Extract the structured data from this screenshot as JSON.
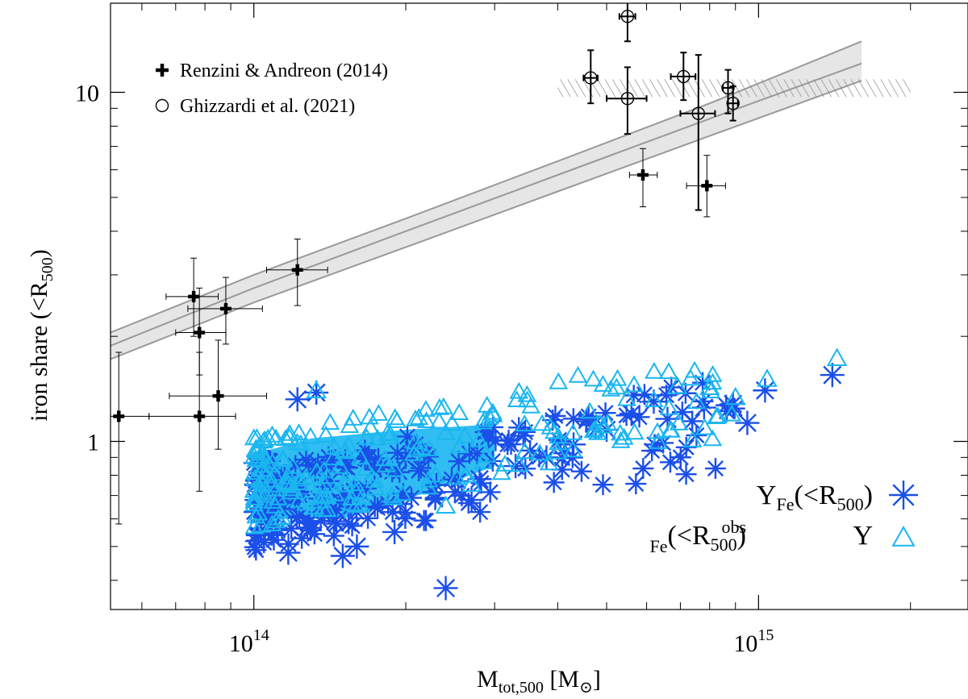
{
  "chart_data": {
    "type": "scatter",
    "xscale": "log",
    "yscale": "log",
    "xlim": [
      52000000000000,
      2600000000000000
    ],
    "ylim": [
      0.33,
      18
    ],
    "xlabel": {
      "main": "M",
      "sub": "tot,500",
      "unit_open": " [M",
      "unit_sub": "⊙",
      "unit_close": "]"
    },
    "ylabel": {
      "main": "iron share (<R",
      "sub": "500",
      "close": ")"
    },
    "x_major_ticks": [
      {
        "value": 100000000000000,
        "base": "10",
        "exp": "14"
      },
      {
        "value": 1000000000000000,
        "base": "10",
        "exp": "15"
      }
    ],
    "y_major_ticks": [
      {
        "value": 1,
        "label": "1"
      },
      {
        "value": 10,
        "label": "10"
      }
    ],
    "band": {
      "x": [
        52000000000000,
        100000000000000,
        200000000000000,
        400000000000000,
        800000000000000,
        1600000000000000
      ],
      "lower": [
        1.72,
        2.5,
        3.6,
        5.2,
        7.5,
        10.8
      ],
      "mid": [
        1.88,
        2.75,
        4.0,
        5.8,
        8.4,
        12.1
      ],
      "upper": [
        2.05,
        3.0,
        4.35,
        6.35,
        9.3,
        14.0
      ]
    },
    "hatch": {
      "x0": 400000000000000,
      "x1": 2000000000000000,
      "y0": 9.7,
      "y1": 10.9
    },
    "renzini": {
      "name": "Renzini & Andreon (2014)",
      "points": [
        {
          "x": 54000000000000,
          "y": 1.18,
          "xlo": 48000000000000,
          "xhi": 62000000000000,
          "ylo": 0.58,
          "yhi": 1.8
        },
        {
          "x": 76000000000000,
          "y": 2.6,
          "xlo": 67000000000000,
          "xhi": 85000000000000,
          "ylo": 2.0,
          "yhi": 3.35
        },
        {
          "x": 78000000000000,
          "y": 2.05,
          "xlo": 70000000000000,
          "xhi": 88000000000000,
          "ylo": 1.55,
          "yhi": 2.75
        },
        {
          "x": 88000000000000,
          "y": 2.4,
          "xlo": 74000000000000,
          "xhi": 104000000000000,
          "ylo": 1.9,
          "yhi": 2.95
        },
        {
          "x": 78000000000000,
          "y": 1.18,
          "xlo": 62000000000000,
          "xhi": 92000000000000,
          "ylo": 0.72,
          "yhi": 1.8
        },
        {
          "x": 85000000000000,
          "y": 1.35,
          "xlo": 68000000000000,
          "xhi": 106000000000000,
          "ylo": 0.95,
          "yhi": 1.95
        },
        {
          "x": 122000000000000,
          "y": 3.1,
          "xlo": 106000000000000,
          "xhi": 140000000000000,
          "ylo": 2.45,
          "yhi": 3.8
        },
        {
          "x": 590000000000000,
          "y": 5.8,
          "xlo": 555000000000000,
          "xhi": 630000000000000,
          "ylo": 4.7,
          "yhi": 6.9
        },
        {
          "x": 790000000000000,
          "y": 5.4,
          "xlo": 720000000000000,
          "xhi": 860000000000000,
          "ylo": 4.4,
          "yhi": 6.6
        }
      ]
    },
    "ghizzardi": {
      "name": "Ghizzardi et al. (2021)",
      "points": [
        {
          "x": 465000000000000,
          "y": 11.0,
          "xlo": 450000000000000,
          "xhi": 480000000000000,
          "ylo": 9.3,
          "yhi": 13.2
        },
        {
          "x": 550000000000000,
          "y": 16.5,
          "xlo": 530000000000000,
          "xhi": 570000000000000,
          "ylo": 14.0,
          "yhi": 19.5
        },
        {
          "x": 550000000000000,
          "y": 9.6,
          "xlo": 500000000000000,
          "xhi": 600000000000000,
          "ylo": 7.6,
          "yhi": 11.8
        },
        {
          "x": 710000000000000,
          "y": 11.1,
          "xlo": 670000000000000,
          "xhi": 750000000000000,
          "ylo": 9.5,
          "yhi": 13.0
        },
        {
          "x": 760000000000000,
          "y": 8.7,
          "xlo": 700000000000000,
          "xhi": 820000000000000,
          "ylo": 4.6,
          "yhi": 12.8
        },
        {
          "x": 870000000000000,
          "y": 10.3,
          "xlo": 850000000000000,
          "xhi": 890000000000000,
          "ylo": 8.7,
          "yhi": 11.6
        },
        {
          "x": 890000000000000,
          "y": 9.3,
          "xlo": 870000000000000,
          "xhi": 910000000000000,
          "ylo": 8.3,
          "yhi": 10.4
        }
      ]
    },
    "sim_asterisk": {
      "name": "Υ_Fe(<R_500)",
      "color": "#1a4fe8",
      "outliers": [
        {
          "x": 240000000000000,
          "y": 0.38
        },
        {
          "x": 1400000000000000,
          "y": 1.55
        },
        {
          "x": 1030000000000000,
          "y": 1.4
        },
        {
          "x": 950000000000000,
          "y": 1.13
        },
        {
          "x": 890000000000000,
          "y": 1.28
        },
        {
          "x": 780000000000000,
          "y": 1.25
        },
        {
          "x": 660000000000000,
          "y": 1.16
        },
        {
          "x": 620000000000000,
          "y": 1.3
        },
        {
          "x": 560000000000000,
          "y": 1.2
        },
        {
          "x": 500000000000000,
          "y": 1.08
        },
        {
          "x": 430000000000000,
          "y": 0.98
        },
        {
          "x": 380000000000000,
          "y": 0.9
        },
        {
          "x": 330000000000000,
          "y": 0.85
        },
        {
          "x": 280000000000000,
          "y": 0.78
        },
        {
          "x": 270000000000000,
          "y": 0.68
        },
        {
          "x": 230000000000000,
          "y": 0.75
        },
        {
          "x": 190000000000000,
          "y": 0.55
        },
        {
          "x": 160000000000000,
          "y": 0.5
        },
        {
          "x": 150000000000000,
          "y": 0.47
        },
        {
          "x": 117000000000000,
          "y": 0.48
        },
        {
          "x": 133000000000000,
          "y": 1.38
        },
        {
          "x": 122000000000000,
          "y": 1.32
        }
      ]
    },
    "sim_triangle": {
      "name": "Υ_Fe^obs(<R_500)",
      "color": "#1ab6f0",
      "outliers": [
        {
          "x": 1430000000000000,
          "y": 1.72
        },
        {
          "x": 1040000000000000,
          "y": 1.5
        },
        {
          "x": 800000000000000,
          "y": 1.42
        },
        {
          "x": 900000000000000,
          "y": 1.33
        },
        {
          "x": 690000000000000,
          "y": 1.43
        },
        {
          "x": 240000000000000,
          "y": 0.65
        },
        {
          "x": 133000000000000,
          "y": 1.39
        },
        {
          "x": 270000000000000,
          "y": 0.75
        }
      ],
      "cloud": {
        "seed": 7,
        "count": 220,
        "xmin": 100000000000000,
        "xmax": 900000000000000,
        "ylogmin": -0.24,
        "ylogmax": 0.06
      }
    },
    "asterisk_cloud": {
      "seed": 3,
      "count": 200,
      "xmin": 100000000000000,
      "xmax": 900000000000000
    },
    "legend": {
      "obs_position": "top-left",
      "sim_position": "bottom-right",
      "asterisk_label": {
        "sym": "Υ",
        "sub": "Fe",
        "rest": "(<R",
        "rsub": "500",
        "close": ")"
      },
      "triangle_label": {
        "sym": "Υ",
        "sup": "obs",
        "sub": "Fe",
        "rest": "(<R",
        "rsub": "500",
        "close": ")"
      }
    }
  }
}
